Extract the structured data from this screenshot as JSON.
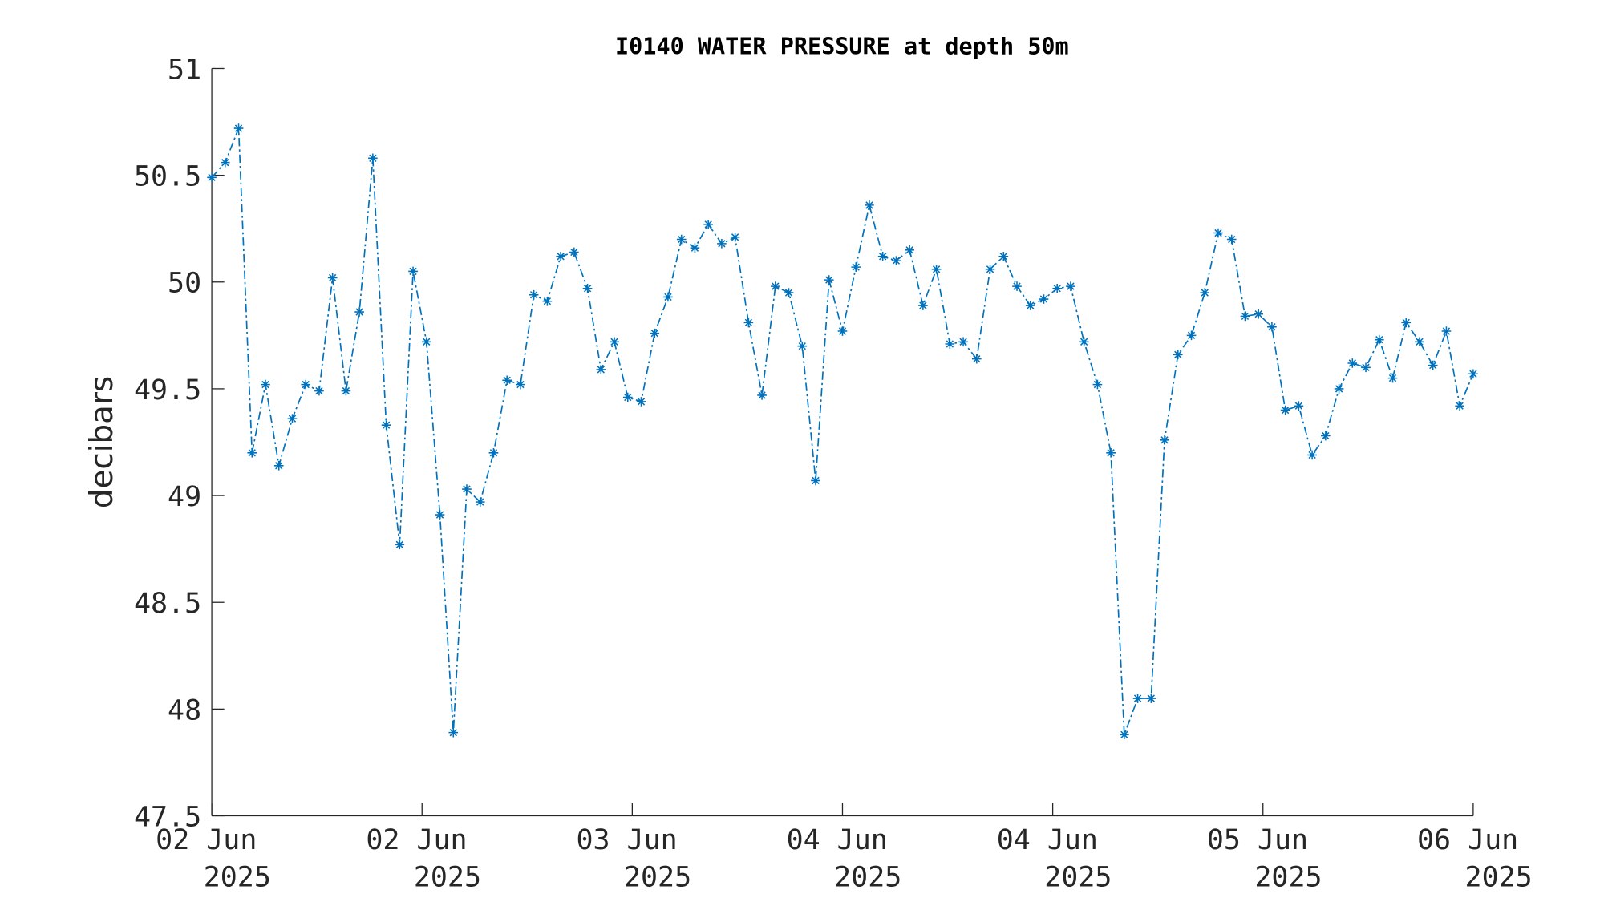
{
  "chart_data": {
    "type": "line",
    "title": "I0140 WATER PRESSURE at depth 50m",
    "y_label": "decibars",
    "x": [
      0,
      1,
      2,
      3,
      4,
      5,
      6,
      7,
      8,
      9,
      10,
      11,
      12,
      13,
      14,
      15,
      16,
      17,
      18,
      19,
      20,
      21,
      22,
      23,
      24,
      25,
      26,
      27,
      28,
      29,
      30,
      31,
      32,
      33,
      34,
      35,
      36,
      37,
      38,
      39,
      40,
      41,
      42,
      43,
      44,
      45,
      46,
      47,
      48,
      49,
      50,
      51,
      52,
      53,
      54,
      55,
      56,
      57,
      58,
      59,
      60,
      61,
      62,
      63,
      64,
      65,
      66,
      67,
      68,
      69,
      70,
      71,
      72,
      73,
      74,
      75,
      76,
      77,
      78,
      79,
      80,
      81,
      82,
      83,
      84,
      85,
      86,
      87,
      88,
      89,
      90,
      91,
      92,
      93,
      94
    ],
    "series": [
      {
        "name": "water pressure",
        "color": "#0072bd",
        "values": [
          50.49,
          50.56,
          50.72,
          49.2,
          49.52,
          49.14,
          49.36,
          49.52,
          49.49,
          50.02,
          49.49,
          49.86,
          50.58,
          49.33,
          48.77,
          50.05,
          49.72,
          48.91,
          47.89,
          49.03,
          48.97,
          49.2,
          49.54,
          49.52,
          49.94,
          49.91,
          50.12,
          50.14,
          49.97,
          49.59,
          49.72,
          49.46,
          49.44,
          49.76,
          49.93,
          50.2,
          50.16,
          50.27,
          50.18,
          50.21,
          49.81,
          49.47,
          49.98,
          49.95,
          49.7,
          49.07,
          50.01,
          49.77,
          50.07,
          50.36,
          50.12,
          50.1,
          50.15,
          49.89,
          50.06,
          49.71,
          49.72,
          49.64,
          50.06,
          50.12,
          49.98,
          49.89,
          49.92,
          49.97,
          49.98,
          49.72,
          49.52,
          49.2,
          47.88,
          48.05,
          48.05,
          49.26,
          49.66,
          49.75,
          49.95,
          50.23,
          50.2,
          49.84,
          49.85,
          49.79,
          49.4,
          49.42,
          49.19,
          49.28,
          49.5,
          49.62,
          49.6,
          49.73,
          49.55,
          49.81,
          49.72,
          49.61,
          49.77,
          49.42,
          49.57
        ]
      }
    ],
    "xlim": [
      0,
      94
    ],
    "xticks": [
      {
        "value": 0,
        "label": "02 Jun\n2025"
      },
      {
        "value": 15.667,
        "label": "02 Jun\n2025"
      },
      {
        "value": 31.333,
        "label": "03 Jun\n2025"
      },
      {
        "value": 47,
        "label": "04 Jun\n2025"
      },
      {
        "value": 62.667,
        "label": "04 Jun\n2025"
      },
      {
        "value": 78.333,
        "label": "05 Jun\n2025"
      },
      {
        "value": 94,
        "label": "06 Jun\n2025"
      }
    ],
    "ylim": [
      47.5,
      51
    ],
    "yticks": [
      47.5,
      48,
      48.5,
      49,
      49.5,
      50,
      50.5,
      51
    ],
    "grid": false
  }
}
